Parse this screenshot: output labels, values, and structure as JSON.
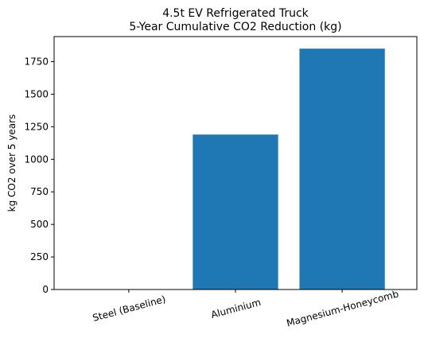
{
  "chart_data": {
    "type": "bar",
    "title_lines": [
      "4.5t EV Refrigerated Truck",
      "5-Year Cumulative CO2 Reduction (kg)"
    ],
    "xlabel": "",
    "ylabel": "kg CO2 over 5 years",
    "categories": [
      "Steel (Baseline)",
      "Aluminium",
      "Magnesium-Honeycomb"
    ],
    "values": [
      0,
      1190,
      1850
    ],
    "ylim": [
      0,
      1942.5
    ],
    "yticks": [
      0,
      250,
      500,
      750,
      1000,
      1250,
      1500,
      1750
    ],
    "xtick_rotation_deg": -15,
    "bar_color": "#1f77b4",
    "grid": false,
    "legend": "none"
  }
}
